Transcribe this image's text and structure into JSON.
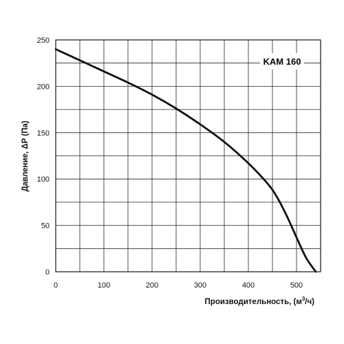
{
  "chart_data": {
    "type": "line",
    "title": "KAM 160",
    "xlabel_main": "Производительность, (м",
    "xlabel_sup": "3",
    "xlabel_tail": "/ч)",
    "ylabel": "Давление, ΔP (Па)",
    "xlim": [
      0,
      550
    ],
    "ylim": [
      0,
      250
    ],
    "x_ticks": [
      0,
      100,
      200,
      300,
      400,
      500
    ],
    "y_ticks": [
      0,
      50,
      100,
      150,
      200,
      250
    ],
    "grid": true,
    "series": [
      {
        "x": [
          0,
          50,
          100,
          150,
          200,
          250,
          300,
          350,
          400,
          440,
          460,
          480,
          500,
          520,
          540
        ],
        "y": [
          240,
          228,
          216,
          204,
          191,
          176,
          159,
          140,
          117,
          95,
          80,
          60,
          37,
          15,
          0
        ]
      }
    ]
  }
}
